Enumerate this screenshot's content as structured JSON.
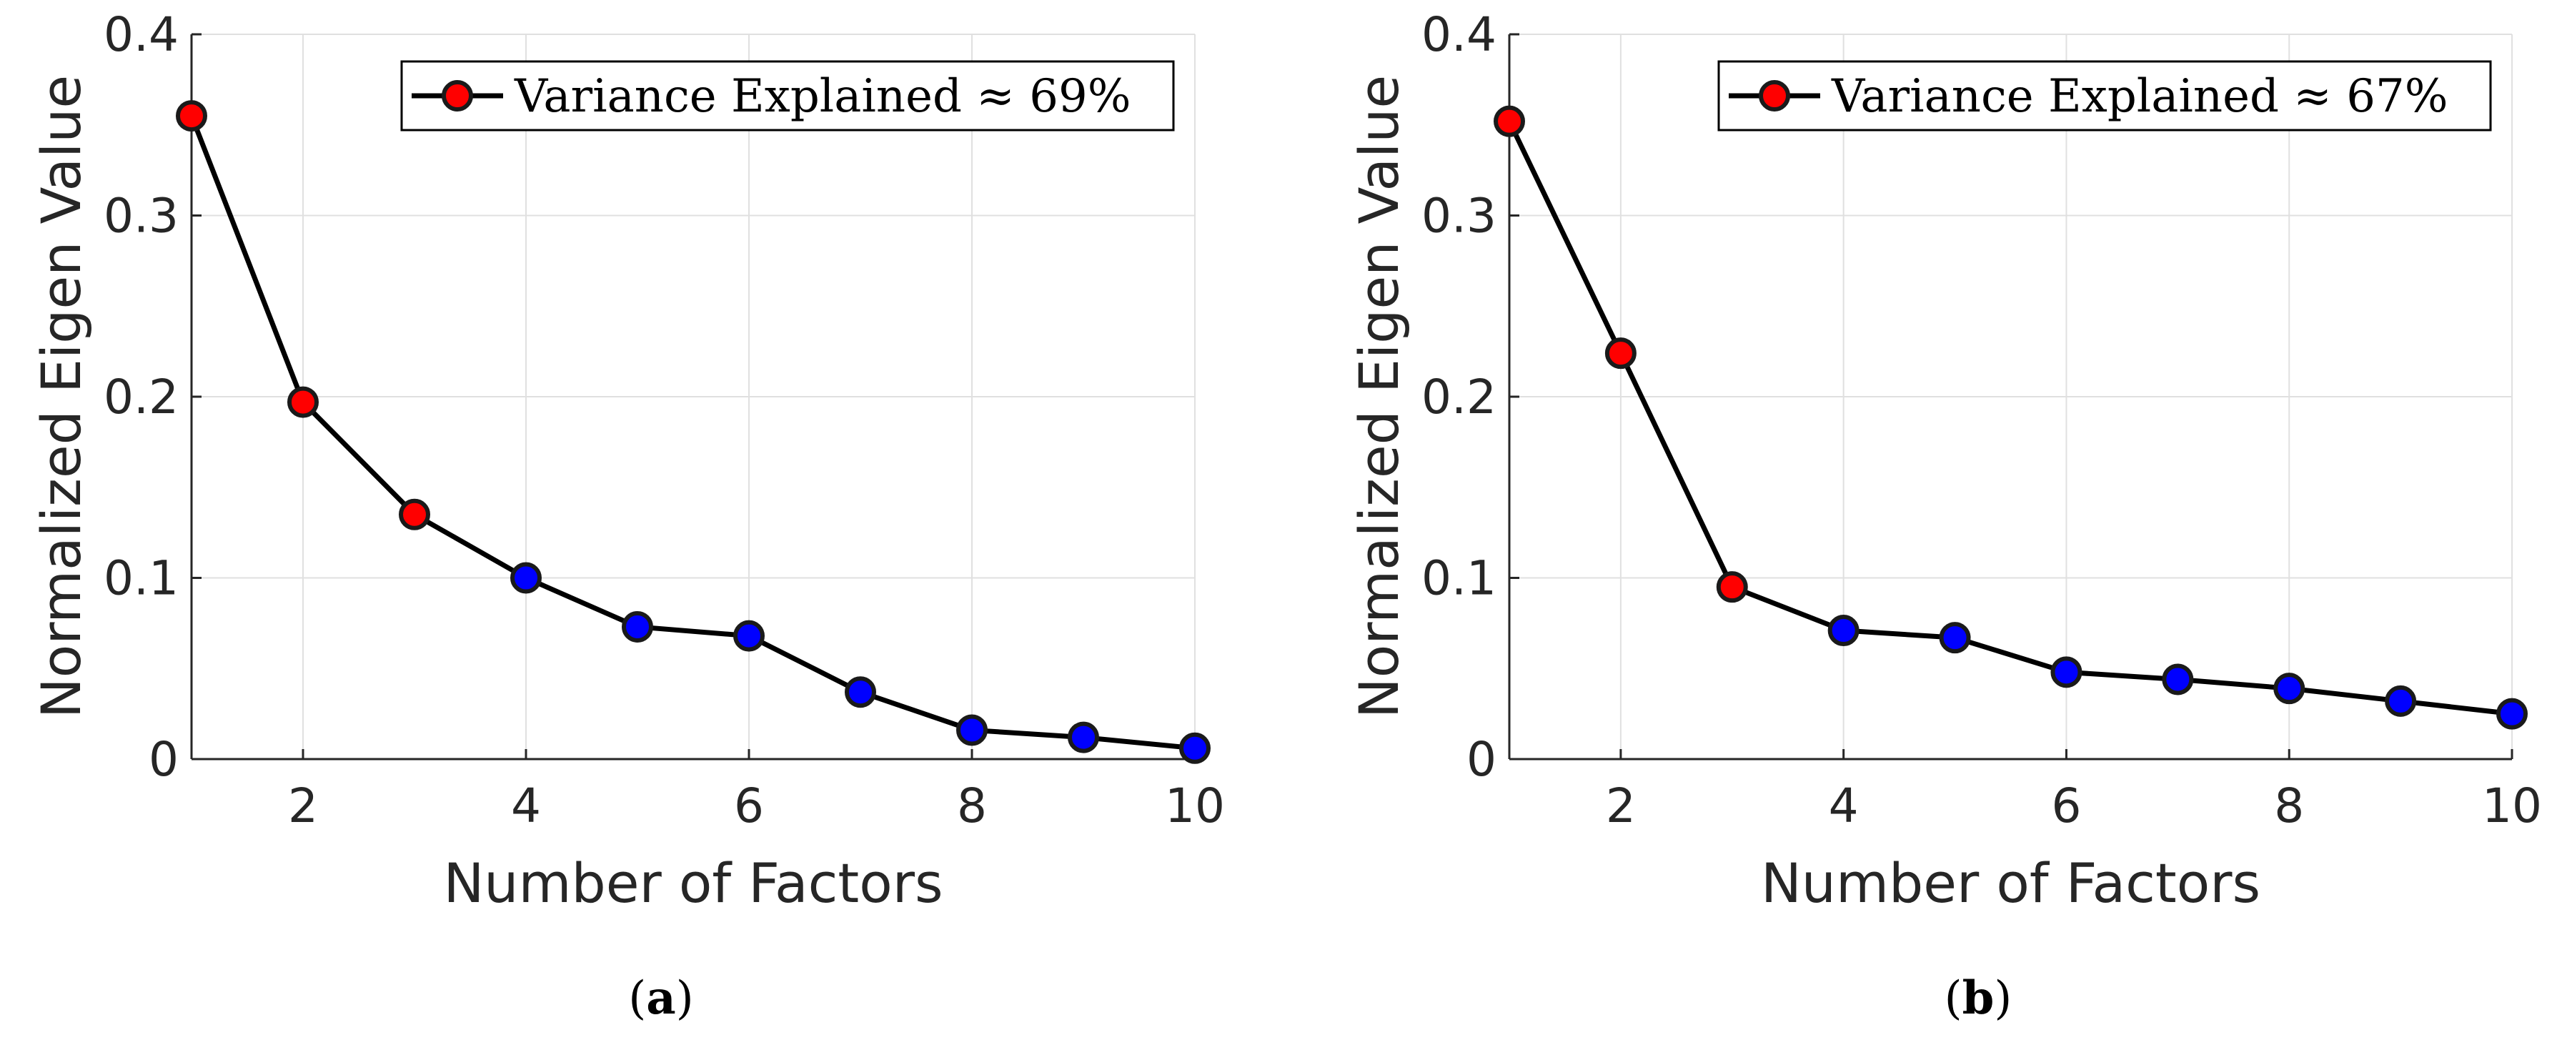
{
  "colors": {
    "retained": "#ff0000",
    "discarded": "#0000ff",
    "line": "#000000",
    "grid": "#e0e0e0",
    "axis": "#262626"
  },
  "chart_data": [
    {
      "type": "line",
      "panel": "a",
      "panel_label": {
        "open": "(",
        "letter": "a",
        "close": ")"
      },
      "xlabel": "Number of Factors",
      "ylabel": "Normalized Eigen Value",
      "xlim": [
        1,
        10
      ],
      "ylim": [
        0,
        0.4
      ],
      "grid": true,
      "x_ticks": [
        2,
        4,
        6,
        8,
        10
      ],
      "y_ticks": [
        0,
        0.1,
        0.2,
        0.3,
        0.4
      ],
      "y_tick_labels": [
        "0",
        "0.1",
        "0.2",
        "0.3",
        "0.4"
      ],
      "legend": {
        "text": "Variance Explained ≈ 69%",
        "placement": "top-right"
      },
      "retained_factors": 3,
      "series": [
        {
          "name": "Variance Explained ≈ 69%",
          "x": [
            1,
            2,
            3,
            4,
            5,
            6,
            7,
            8,
            9,
            10
          ],
          "values": [
            0.355,
            0.197,
            0.135,
            0.1,
            0.073,
            0.068,
            0.037,
            0.016,
            0.012,
            0.006
          ]
        }
      ]
    },
    {
      "type": "line",
      "panel": "b",
      "panel_label": {
        "open": "(",
        "letter": "b",
        "close": ")"
      },
      "xlabel": "Number of Factors",
      "ylabel": "Normalized Eigen Value",
      "xlim": [
        1,
        10
      ],
      "ylim": [
        0,
        0.4
      ],
      "grid": true,
      "x_ticks": [
        2,
        4,
        6,
        8,
        10
      ],
      "y_ticks": [
        0,
        0.1,
        0.2,
        0.3,
        0.4
      ],
      "y_tick_labels": [
        "0",
        "0.1",
        "0.2",
        "0.3",
        "0.4"
      ],
      "legend": {
        "text": "Variance Explained ≈ 67%",
        "placement": "top-right"
      },
      "retained_factors": 3,
      "series": [
        {
          "name": "Variance Explained ≈ 67%",
          "x": [
            1,
            2,
            3,
            4,
            5,
            6,
            7,
            8,
            9,
            10
          ],
          "values": [
            0.352,
            0.224,
            0.095,
            0.071,
            0.067,
            0.048,
            0.044,
            0.039,
            0.032,
            0.025
          ]
        }
      ]
    }
  ]
}
